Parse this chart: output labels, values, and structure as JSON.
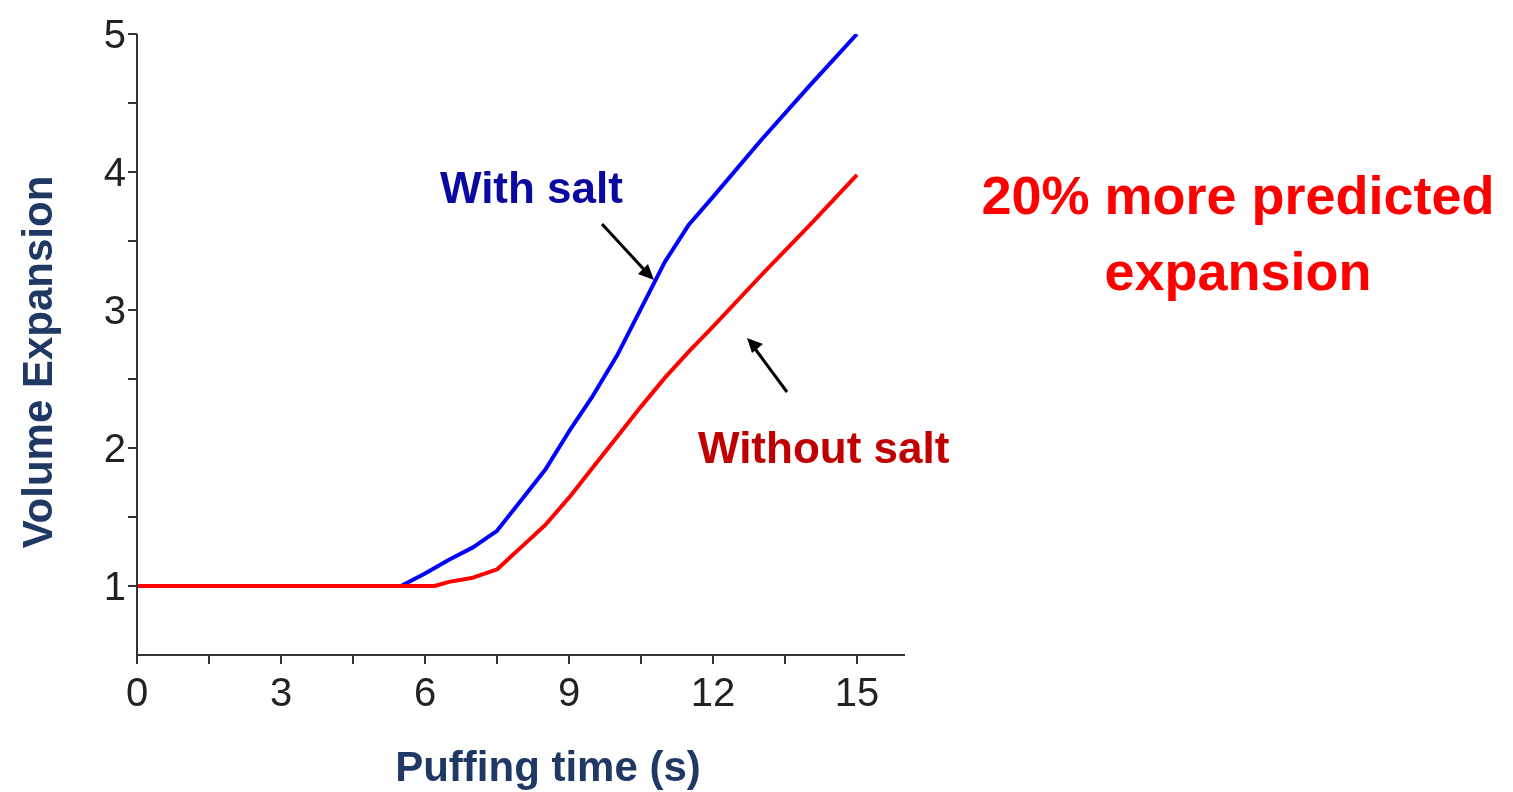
{
  "chart_data": {
    "type": "line",
    "xlabel": "Puffing time (s)",
    "ylabel": "Volume Expansion",
    "xlim": [
      0,
      16
    ],
    "xticks": [
      0,
      {
        "value": 1.5,
        "label": null
      },
      3,
      {
        "value": 4.5,
        "label": null
      },
      6,
      {
        "value": 7.5,
        "label": null
      },
      9,
      {
        "value": 10.5,
        "label": null
      },
      12,
      {
        "value": 13.5,
        "label": null
      },
      15
    ],
    "ylim": [
      0.5,
      5
    ],
    "yticks": [
      1,
      {
        "value": 1.5,
        "label": null
      },
      2,
      {
        "value": 2.5,
        "label": null
      },
      3,
      {
        "value": 3.5,
        "label": null
      },
      4,
      {
        "value": 4.5,
        "label": null
      },
      5
    ],
    "marker": "none",
    "line_style": "solid",
    "series": [
      {
        "name": "With salt",
        "color": "#0000ff",
        "x": [
          0,
          5.5,
          6,
          6.5,
          7,
          7.5,
          8,
          8.5,
          9,
          9.5,
          10,
          10.5,
          11,
          11.5,
          12,
          13,
          14,
          15
        ],
        "values": [
          1,
          1,
          1.09,
          1.19,
          1.28,
          1.4,
          1.62,
          1.84,
          2.12,
          2.38,
          2.67,
          3.01,
          3.35,
          3.62,
          3.82,
          4.23,
          4.62,
          5
        ]
      },
      {
        "name": "Without salt",
        "color": "#ff0000",
        "x": [
          0,
          6.2,
          6.5,
          7,
          7.5,
          8,
          8.5,
          9,
          9.5,
          10,
          10.5,
          11,
          11.5,
          12,
          13,
          14,
          15
        ],
        "values": [
          1,
          1,
          1.03,
          1.06,
          1.12,
          1.28,
          1.44,
          1.64,
          1.86,
          2.08,
          2.3,
          2.51,
          2.7,
          2.88,
          3.25,
          3.61,
          3.98
        ]
      }
    ],
    "annotations": [
      "20% more predicted expansion"
    ]
  }
}
